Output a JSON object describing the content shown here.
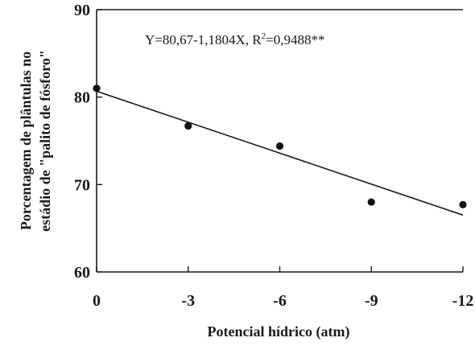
{
  "chart_data": {
    "type": "scatter",
    "equation": "Y=80,67-1,1804X, R",
    "equation_sup": "2",
    "equation_tail": "=0,9488**",
    "xlabel": "Potencial hídrico (atm)",
    "ylabel_line1": "Porcentagem de plântulas no",
    "ylabel_line2": "estádio de \"palito de fósforo\"",
    "xlim": [
      0,
      -12
    ],
    "ylim": [
      60,
      90
    ],
    "x_ticks": [
      0,
      -3,
      -6,
      -9,
      -12
    ],
    "x_tick_labels": [
      "0",
      "-3",
      "-6",
      "-9",
      "-12"
    ],
    "y_ticks": [
      60,
      70,
      80,
      90
    ],
    "y_tick_labels": [
      "60",
      "70",
      "80",
      "90"
    ],
    "points": [
      {
        "x": 0,
        "y": 81.0
      },
      {
        "x": -3,
        "y": 76.7
      },
      {
        "x": -6,
        "y": 74.4
      },
      {
        "x": -9,
        "y": 68.0
      },
      {
        "x": -12,
        "y": 67.7
      }
    ],
    "regression": {
      "intercept": 80.67,
      "slope": -1.1804
    },
    "grid": false
  }
}
